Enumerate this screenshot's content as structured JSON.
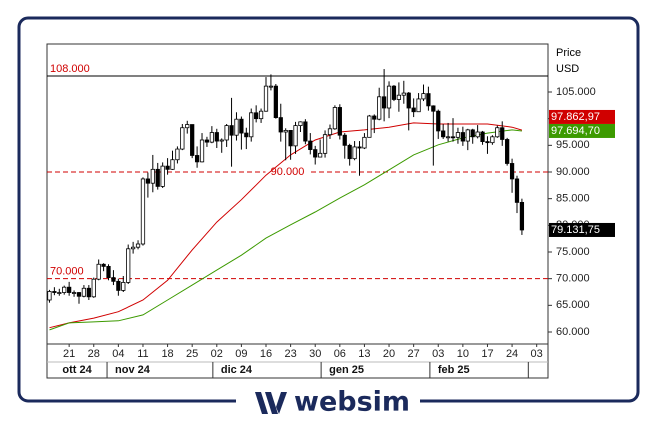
{
  "brand": "websim",
  "chart_data": {
    "type": "candlestick",
    "ylabel": "Price",
    "yunit": "USD",
    "ylim": [
      57750,
      114000
    ],
    "yticks": [
      {
        "value": 60000,
        "label": "60.000"
      },
      {
        "value": 65000,
        "label": "65.000"
      },
      {
        "value": 70000,
        "label": "70.000"
      },
      {
        "value": 75000,
        "label": "75.000"
      },
      {
        "value": 80000,
        "label": "80.000"
      },
      {
        "value": 85000,
        "label": "85.000"
      },
      {
        "value": 90000,
        "label": "90.000"
      },
      {
        "value": 95000,
        "label": "95.000"
      },
      {
        "value": 100000,
        "label": "100.000"
      },
      {
        "value": 105000,
        "label": "105.000"
      }
    ],
    "xlim": [
      -0.5,
      101.3
    ],
    "xticks": [
      {
        "value": 4,
        "label": "21"
      },
      {
        "value": 9,
        "label": "28"
      },
      {
        "value": 14,
        "label": "04"
      },
      {
        "value": 19,
        "label": "11"
      },
      {
        "value": 24,
        "label": "18"
      },
      {
        "value": 29,
        "label": "25"
      },
      {
        "value": 34,
        "label": "02"
      },
      {
        "value": 39,
        "label": "09"
      },
      {
        "value": 44,
        "label": "16"
      },
      {
        "value": 49,
        "label": "23"
      },
      {
        "value": 54,
        "label": "30"
      },
      {
        "value": 59,
        "label": "06"
      },
      {
        "value": 64,
        "label": "13"
      },
      {
        "value": 69,
        "label": "20"
      },
      {
        "value": 74,
        "label": "27"
      },
      {
        "value": 79,
        "label": "03"
      },
      {
        "value": 84,
        "label": "10"
      },
      {
        "value": 89,
        "label": "17"
      },
      {
        "value": 94,
        "label": "24"
      },
      {
        "value": 99,
        "label": "03"
      }
    ],
    "month_bounds": [
      11.7,
      33.2,
      55.2,
      77.3,
      97.3
    ],
    "month_labels": [
      "ott 24",
      "nov 24",
      "dic 24",
      "gen 25",
      "feb 25"
    ],
    "up_color": "#ffffff",
    "down_color": "#000000",
    "open": [
      66000,
      67600,
      67400,
      67400,
      68400,
      67400,
      67400,
      66700,
      68200,
      66600,
      69900,
      72700,
      72300,
      70200,
      69500,
      67800,
      69300,
      75600,
      75900,
      76500,
      88700,
      87900,
      90500,
      87300,
      91100,
      90500,
      92300,
      94300,
      98300,
      98900,
      93100,
      91900,
      96000,
      95600,
      97400,
      95800,
      96000,
      98700,
      96900,
      99900,
      97300,
      96600,
      101100,
      100000,
      101400,
      106100,
      106100,
      100200,
      97500,
      97800,
      94900,
      98700,
      99400,
      95800,
      94200,
      92800,
      93500,
      97000,
      98100,
      102100,
      96900,
      95000,
      92500,
      94700,
      94500,
      96500,
      100500,
      99900,
      104100,
      102000,
      106100,
      103600,
      104400,
      104800,
      102000,
      101300,
      103700,
      104700,
      102400,
      101400,
      97700,
      96600,
      96600,
      96500,
      97400,
      95800,
      97900,
      96600,
      97500,
      95700,
      95500,
      96600,
      98300,
      96100,
      91600,
      88700,
      84300
    ],
    "high": [
      67900,
      68400,
      68100,
      68700,
      69400,
      67800,
      67500,
      68800,
      68800,
      70200,
      73600,
      72900,
      72700,
      71600,
      70000,
      70500,
      76400,
      76900,
      77200,
      89000,
      89900,
      93200,
      91700,
      91800,
      92600,
      94000,
      94800,
      99000,
      99600,
      98900,
      94800,
      97300,
      96600,
      98600,
      98100,
      96300,
      99000,
      103900,
      101200,
      100400,
      98300,
      101900,
      102500,
      101900,
      107800,
      108300,
      106500,
      102800,
      98200,
      97800,
      99400,
      99500,
      99900,
      97300,
      94900,
      96100,
      97800,
      98900,
      102500,
      102700,
      97300,
      95300,
      95800,
      95800,
      97300,
      100700,
      100800,
      105800,
      109300,
      107000,
      106300,
      106800,
      107100,
      105000,
      103800,
      104800,
      106400,
      106000,
      102500,
      101700,
      99000,
      99200,
      100100,
      98300,
      98500,
      98100,
      98100,
      98800,
      97700,
      96700,
      96900,
      98700,
      99500,
      96400,
      92500,
      89300,
      85000
    ],
    "low": [
      65500,
      66900,
      66800,
      67000,
      66800,
      66600,
      65300,
      66500,
      66000,
      66400,
      69700,
      71400,
      69700,
      68800,
      66800,
      67500,
      69000,
      74700,
      75500,
      76200,
      85200,
      86200,
      86700,
      87000,
      89500,
      90400,
      91600,
      94100,
      97200,
      92600,
      90800,
      91800,
      94700,
      95400,
      94500,
      93600,
      94700,
      91000,
      95900,
      94200,
      94300,
      95700,
      99300,
      99200,
      101300,
      105300,
      100000,
      95700,
      92200,
      92300,
      93400,
      97500,
      95200,
      93300,
      91400,
      92800,
      92700,
      96200,
      97900,
      96100,
      92500,
      91200,
      92200,
      89300,
      94300,
      96500,
      97300,
      99700,
      99500,
      100100,
      103300,
      101300,
      102800,
      97800,
      100300,
      101300,
      103300,
      101500,
      91200,
      96200,
      96200,
      95700,
      95700,
      95300,
      94900,
      94100,
      95300,
      96300,
      95100,
      93400,
      95100,
      96400,
      94900,
      91200,
      86100,
      82300,
      78200
    ],
    "close": [
      67600,
      67400,
      67400,
      68400,
      67400,
      67400,
      66700,
      68200,
      66600,
      69900,
      72700,
      72300,
      70200,
      69500,
      67800,
      69300,
      75600,
      75900,
      76500,
      88700,
      87900,
      90500,
      87300,
      91100,
      90500,
      92300,
      94300,
      98300,
      98900,
      93100,
      91900,
      96000,
      95600,
      97400,
      95800,
      96000,
      98700,
      96900,
      99900,
      97300,
      96600,
      101100,
      100000,
      101400,
      106100,
      106100,
      100200,
      97500,
      97800,
      94900,
      98700,
      99400,
      95800,
      94200,
      92800,
      93500,
      97000,
      98100,
      102100,
      96900,
      95000,
      92500,
      94700,
      94500,
      96500,
      100500,
      99900,
      104100,
      102000,
      106100,
      103600,
      104400,
      104800,
      102000,
      101300,
      103700,
      104700,
      102400,
      101400,
      97700,
      96600,
      96600,
      96500,
      97400,
      95800,
      97900,
      96600,
      97500,
      95700,
      95500,
      96600,
      98300,
      96100,
      91600,
      88700,
      84300,
      79131.75
    ],
    "last_label": "79.131,75",
    "moving_averages": [
      {
        "color": "#d00000",
        "last_label": "97.862,97",
        "x": [
          0,
          4,
          9,
          14,
          19,
          24,
          29,
          34,
          39,
          44,
          49,
          54,
          59,
          64,
          69,
          74,
          79,
          84,
          89,
          94,
          96
        ],
        "values": [
          60800,
          61700,
          62600,
          63800,
          66000,
          69700,
          75400,
          80600,
          84800,
          89400,
          93200,
          96000,
          97500,
          97900,
          98400,
          99200,
          99000,
          99000,
          99000,
          98400,
          97862.97
        ]
      },
      {
        "color": "#3c9a00",
        "last_label": "97.694,70",
        "x": [
          0,
          4,
          9,
          14,
          19,
          24,
          29,
          34,
          39,
          44,
          49,
          54,
          59,
          64,
          69,
          74,
          79,
          84,
          89,
          94,
          96
        ],
        "values": [
          60400,
          61700,
          61900,
          62100,
          63200,
          66000,
          68800,
          71600,
          74400,
          77600,
          80100,
          82500,
          85100,
          87600,
          90400,
          93200,
          95100,
          96400,
          97300,
          97900,
          97694.7
        ]
      }
    ],
    "hlines": [
      {
        "value": 108000,
        "label": "108.000",
        "color": "#000000",
        "dashed": false,
        "label_at": "left"
      },
      {
        "value": 90000,
        "label": "90.000",
        "color": "#d00000",
        "dashed": true,
        "label_at": "center"
      },
      {
        "value": 70000,
        "label": "70.000",
        "color": "#d00000",
        "dashed": true,
        "label_at": "left"
      }
    ]
  }
}
